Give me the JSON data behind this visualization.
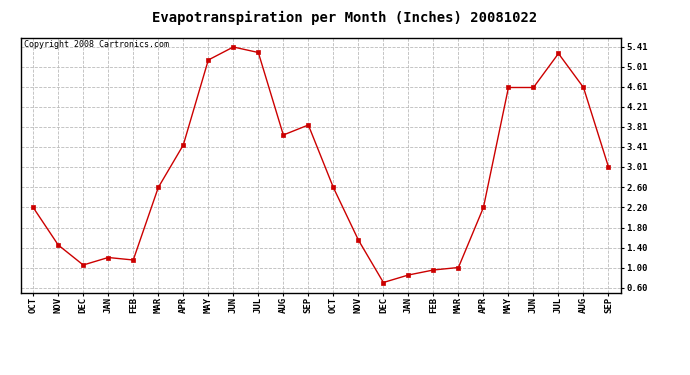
{
  "title": "Evapotranspiration per Month (Inches) 20081022",
  "copyright_text": "Copyright 2008 Cartronics.com",
  "months": [
    "OCT",
    "NOV",
    "DEC",
    "JAN",
    "FEB",
    "MAR",
    "APR",
    "MAY",
    "JUN",
    "JUL",
    "AUG",
    "SEP",
    "OCT",
    "NOV",
    "DEC",
    "JAN",
    "FEB",
    "MAR",
    "APR",
    "MAY",
    "JUN",
    "JUL",
    "AUG",
    "SEP"
  ],
  "values": [
    2.2,
    1.45,
    1.05,
    1.2,
    1.15,
    2.6,
    3.45,
    5.15,
    5.41,
    5.3,
    3.65,
    3.85,
    2.6,
    1.55,
    0.7,
    0.85,
    0.95,
    1.0,
    2.2,
    4.6,
    4.6,
    5.28,
    4.6,
    3.01
  ],
  "yticks": [
    0.6,
    1.0,
    1.4,
    1.8,
    2.2,
    2.6,
    3.01,
    3.41,
    3.81,
    4.21,
    4.61,
    5.01,
    5.41
  ],
  "ylim": [
    0.5,
    5.6
  ],
  "line_color": "#cc0000",
  "marker": "s",
  "marker_size": 2.5,
  "background_color": "#ffffff",
  "grid_color": "#bbbbbb",
  "title_fontsize": 10,
  "tick_fontsize": 6.5,
  "copyright_fontsize": 6
}
